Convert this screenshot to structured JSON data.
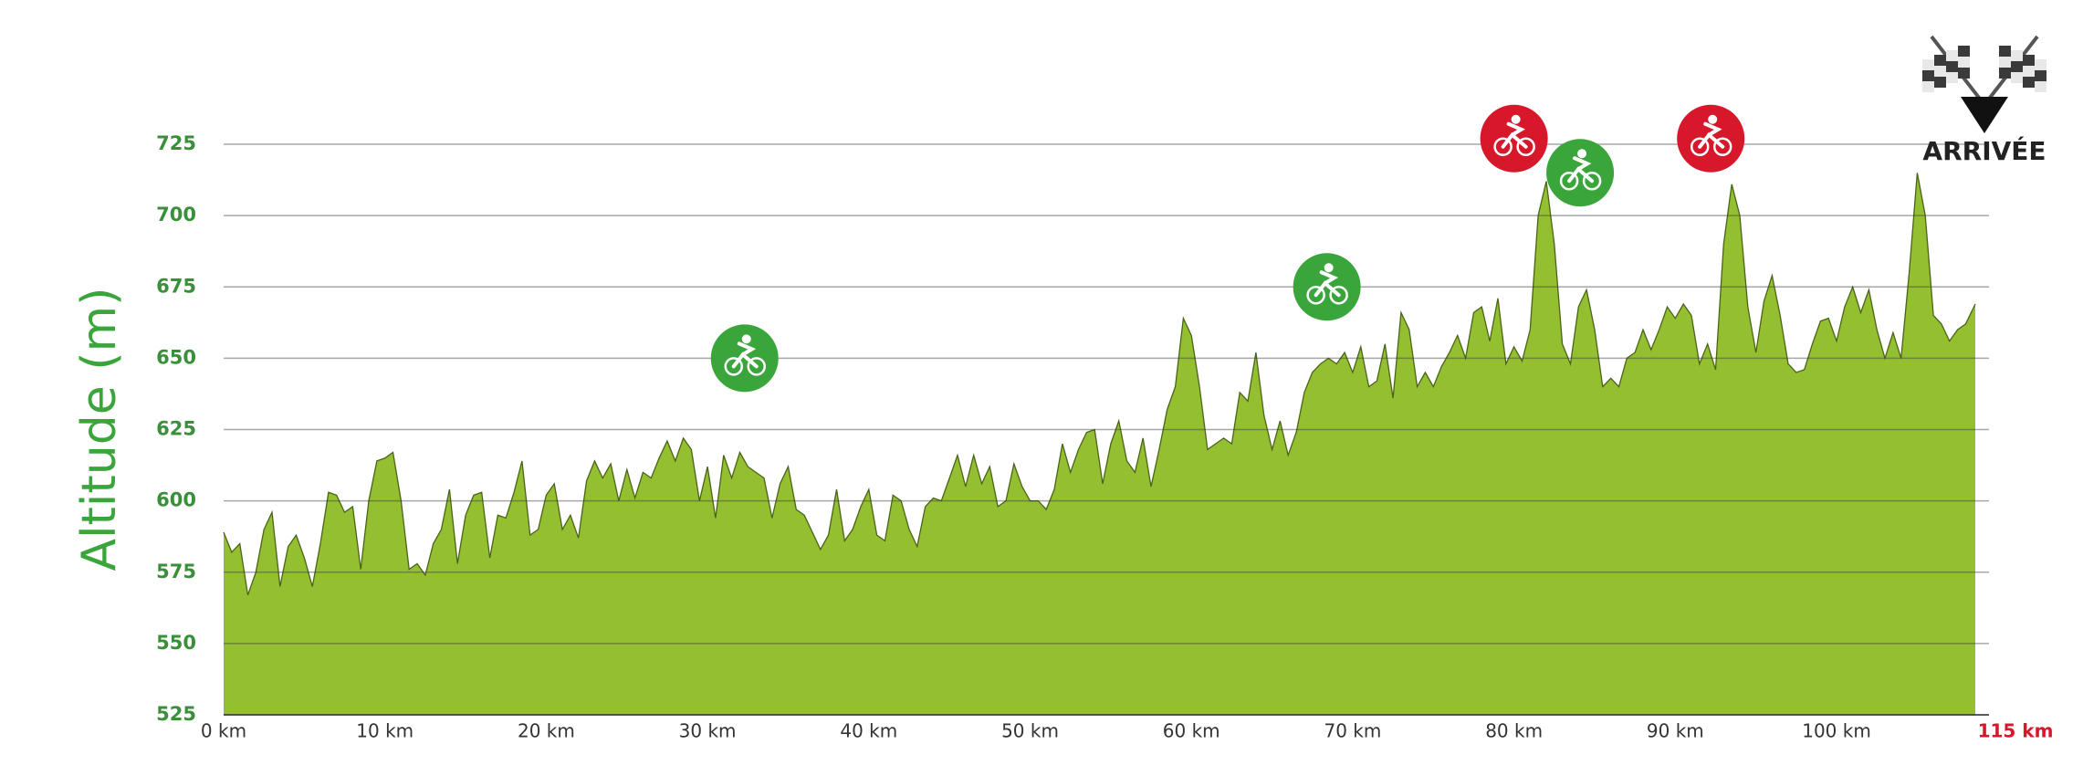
{
  "chart_data": {
    "type": "area",
    "y_label": "Altitude (m)",
    "x": [
      0,
      0.5,
      1,
      1.5,
      2,
      2.5,
      3,
      3.5,
      4,
      4.5,
      5,
      5.5,
      6,
      6.5,
      7,
      7.5,
      8,
      8.5,
      9,
      9.5,
      10,
      10.5,
      11,
      11.5,
      12,
      12.5,
      13,
      13.5,
      14,
      14.5,
      15,
      15.5,
      16,
      16.5,
      17,
      17.5,
      18,
      18.5,
      19,
      19.5,
      20,
      20.5,
      21,
      21.5,
      22,
      22.5,
      23,
      23.5,
      24,
      24.5,
      25,
      25.5,
      26,
      26.5,
      27,
      27.5,
      28,
      28.5,
      29,
      29.5,
      30,
      30.5,
      31,
      31.5,
      32,
      32.5,
      33,
      33.5,
      34,
      34.5,
      35,
      35.5,
      36,
      36.5,
      37,
      37.5,
      38,
      38.5,
      39,
      39.5,
      40,
      40.5,
      41,
      41.5,
      42,
      42.5,
      43,
      43.5,
      44,
      44.5,
      45,
      45.5,
      46,
      46.5,
      47,
      47.5,
      48,
      48.5,
      49,
      49.5,
      50,
      50.5,
      51,
      51.5,
      52,
      52.5,
      53,
      53.5,
      54,
      54.5,
      55,
      55.5,
      56,
      56.5,
      57,
      57.5,
      58,
      58.5,
      59,
      59.5,
      60,
      60.5,
      61,
      61.5,
      62,
      62.5,
      63,
      63.5,
      64,
      64.5,
      65,
      65.5,
      66,
      66.5,
      67,
      67.5,
      68,
      68.5,
      69,
      69.5,
      70,
      70.5,
      71,
      71.5,
      72,
      72.5,
      73,
      73.5,
      74,
      74.5,
      75,
      75.5,
      76,
      76.5,
      77,
      77.5,
      78,
      78.5,
      79,
      79.5,
      80,
      80.5,
      81,
      81.5,
      82,
      82.5,
      83,
      83.5,
      84,
      84.5,
      85,
      85.5,
      86,
      86.5,
      87,
      87.5,
      88,
      88.5,
      89,
      89.5,
      90,
      90.5,
      91,
      91.5,
      92,
      92.5,
      93,
      93.5,
      94,
      94.5,
      95,
      95.5,
      96,
      96.5,
      97,
      97.5,
      98,
      98.5,
      99,
      99.5,
      100,
      100.5,
      101,
      101.5,
      102,
      102.5,
      103,
      103.5,
      104,
      104.5,
      105,
      105.5,
      106,
      106.5,
      107,
      107.5,
      108,
      108.6
    ],
    "values": [
      589,
      582,
      585,
      567,
      575,
      590,
      596,
      570,
      584,
      588,
      580,
      570,
      585,
      603,
      602,
      596,
      598,
      576,
      600,
      614,
      615,
      617,
      600,
      576,
      578,
      574,
      585,
      590,
      604,
      578,
      595,
      602,
      603,
      580,
      595,
      594,
      603,
      614,
      588,
      590,
      602,
      606,
      590,
      595,
      587,
      607,
      614,
      608,
      613,
      600,
      611,
      601,
      610,
      608,
      615,
      621,
      614,
      622,
      618,
      600,
      612,
      594,
      616,
      608,
      617,
      612,
      610,
      608,
      594,
      606,
      612,
      597,
      595,
      589,
      583,
      588,
      604,
      586,
      590,
      598,
      604,
      588,
      586,
      602,
      600,
      590,
      584,
      598,
      601,
      600,
      608,
      616,
      605,
      616,
      606,
      612,
      598,
      600,
      613,
      605,
      600,
      600,
      597,
      604,
      620,
      610,
      618,
      624,
      625,
      606,
      620,
      628,
      614,
      610,
      622,
      605,
      618,
      632,
      640,
      664,
      658,
      640,
      618,
      620,
      622,
      620,
      638,
      635,
      652,
      630,
      618,
      628,
      616,
      624,
      638,
      645,
      648,
      650,
      648,
      652,
      645,
      654,
      640,
      642,
      655,
      636,
      666,
      660,
      640,
      645,
      640,
      647,
      652,
      658,
      650,
      666,
      668,
      656,
      671,
      648,
      654,
      649,
      660,
      700,
      712,
      690,
      655,
      648,
      668,
      674,
      660,
      640,
      643,
      640,
      650,
      652,
      660,
      653,
      660,
      668,
      664,
      669,
      665,
      648,
      655,
      646,
      690,
      711,
      700,
      668,
      652,
      670,
      679,
      665,
      648,
      645,
      646,
      655,
      663,
      664,
      656,
      668,
      675,
      666,
      674,
      660,
      650,
      659,
      650,
      680,
      715,
      700,
      665,
      662,
      656,
      660,
      662,
      669
    ],
    "color": "#93bf30",
    "xlim": [
      0,
      108.6
    ],
    "ylim": [
      525,
      725
    ],
    "yticks": [
      525,
      550,
      575,
      600,
      625,
      650,
      675,
      700,
      725
    ],
    "xticks": [
      {
        "value": 0,
        "label": "0 km"
      },
      {
        "value": 10,
        "label": "10 km"
      },
      {
        "value": 20,
        "label": "20 km"
      },
      {
        "value": 30,
        "label": "30 km"
      },
      {
        "value": 40,
        "label": "40 km"
      },
      {
        "value": 50,
        "label": "50 km"
      },
      {
        "value": 60,
        "label": "60 km"
      },
      {
        "value": 70,
        "label": "70 km"
      },
      {
        "value": 80,
        "label": "80 km"
      },
      {
        "value": 90,
        "label": "90 km"
      },
      {
        "value": 100,
        "label": "100 km"
      }
    ],
    "grid": true,
    "finish": {
      "label": "ARRIVÉE",
      "distance_label": "115 km"
    },
    "markers": [
      {
        "x": 32.3,
        "y": 650,
        "color": "#3aa53a"
      },
      {
        "x": 68.4,
        "y": 675,
        "color": "#3aa53a"
      },
      {
        "x": 84.1,
        "y": 715,
        "color": "#3aa53a"
      },
      {
        "x": 80,
        "y": 727,
        "color": "#d7182a"
      },
      {
        "x": 92.2,
        "y": 727,
        "color": "#d7182a"
      }
    ]
  }
}
